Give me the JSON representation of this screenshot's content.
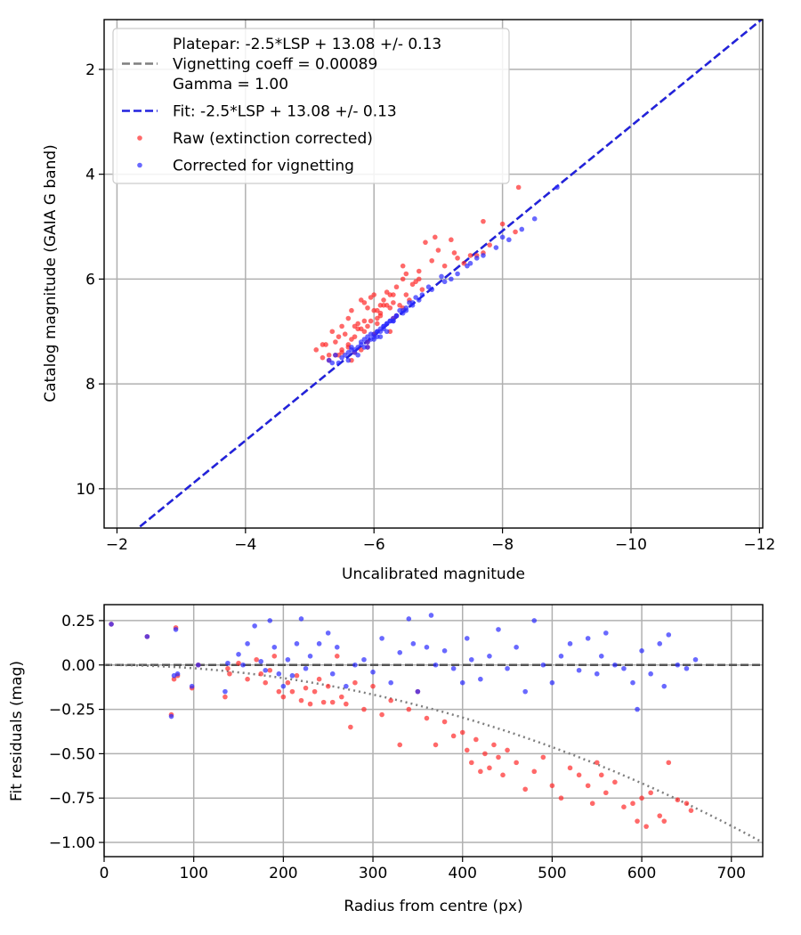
{
  "chart_data": [
    {
      "type": "scatter",
      "title": "",
      "xlabel": "Uncalibrated magnitude",
      "ylabel": "Catalog magnitude (GAIA G band)",
      "xlim": [
        -1.8,
        -12.05
      ],
      "ylim": [
        10.75,
        1.05
      ],
      "x_inverted": true,
      "y_inverted": true,
      "grid": true,
      "legend_position": "upper-left",
      "x_ticks": [
        -2,
        -4,
        -6,
        -8,
        -10,
        -12
      ],
      "x_tick_labels": [
        "−2",
        "−4",
        "−6",
        "−8",
        "−10",
        "−12"
      ],
      "y_ticks": [
        2,
        4,
        6,
        8,
        10
      ],
      "y_tick_labels": [
        "2",
        "4",
        "6",
        "8",
        "10"
      ],
      "legend": [
        {
          "kind": "line",
          "color": "#7f7f7f",
          "style": "dashed",
          "lines": [
            "Platepar: -2.5*LSP + 13.08 +/- 0.13",
            "Vignetting coeff = 0.00089",
            "Gamma = 1.00"
          ]
        },
        {
          "kind": "line",
          "color": "#2222dd",
          "style": "dashed",
          "lines": [
            "Fit: -2.5*LSP + 13.08 +/- 0.13"
          ]
        },
        {
          "kind": "marker",
          "color": "#ff2a2a",
          "lines": [
            "Raw (extinction corrected)"
          ]
        },
        {
          "kind": "marker",
          "color": "#2a2aff",
          "lines": [
            "Corrected for vignetting"
          ]
        }
      ],
      "series": [
        {
          "name": "Platepar: -2.5*LSP + 13.08 +/- 0.13",
          "kind": "line",
          "color": "#7f7f7f",
          "slope": 1.0,
          "intercept": 13.08
        },
        {
          "name": "Fit: -2.5*LSP + 13.08 +/- 0.13",
          "kind": "line",
          "color": "#2222dd",
          "slope": 1.0,
          "intercept": 13.08
        },
        {
          "name": "Raw (extinction corrected)",
          "kind": "scatter",
          "color": "#ff2a2a",
          "x": [
            -5.1,
            -5.2,
            -5.3,
            -5.4,
            -5.5,
            -5.6,
            -5.7,
            -5.8,
            -5.9,
            -6.0,
            -5.2,
            -5.35,
            -5.5,
            -5.65,
            -5.8,
            -5.95,
            -6.1,
            -6.25,
            -5.3,
            -5.45,
            -5.6,
            -5.75,
            -5.9,
            -6.05,
            -6.2,
            -6.35,
            -5.4,
            -5.55,
            -5.7,
            -5.85,
            -6.0,
            -6.15,
            -6.3,
            -6.45,
            -5.5,
            -5.65,
            -5.8,
            -5.95,
            -6.1,
            -6.25,
            -6.4,
            -6.55,
            -5.6,
            -5.75,
            -5.9,
            -6.05,
            -6.2,
            -6.35,
            -6.5,
            -6.65,
            -5.7,
            -5.85,
            -6.0,
            -6.15,
            -6.3,
            -6.45,
            -6.6,
            -6.75,
            -5.9,
            -6.1,
            -6.3,
            -6.5,
            -6.7,
            -6.9,
            -7.1,
            -7.3,
            -7.5,
            -7.7,
            -6.8,
            -7.0,
            -7.2,
            -7.4,
            -7.6,
            -7.8,
            -8.0,
            -8.2,
            -8.25,
            -7.7,
            -6.45,
            -6.7,
            -6.95,
            -7.25,
            -5.25,
            -5.45,
            -5.65,
            -5.85,
            -6.05,
            -6.25
          ],
          "y": [
            7.35,
            7.25,
            7.45,
            7.2,
            7.4,
            7.3,
            7.1,
            7.35,
            7.2,
            7.05,
            7.5,
            7.0,
            6.9,
            7.15,
            6.95,
            6.8,
            6.7,
            7.0,
            7.55,
            7.1,
            6.75,
            6.85,
            7.3,
            6.6,
            6.5,
            6.7,
            7.45,
            7.05,
            6.9,
            6.45,
            6.3,
            6.5,
            6.75,
            6.55,
            7.35,
            6.6,
            6.4,
            6.35,
            6.65,
            6.3,
            6.5,
            6.4,
            7.25,
            6.95,
            6.55,
            6.75,
            6.25,
            6.15,
            6.3,
            6.05,
            7.4,
            6.8,
            6.6,
            6.4,
            6.45,
            6.0,
            6.1,
            6.2,
            6.9,
            6.5,
            6.3,
            5.9,
            5.85,
            5.65,
            5.75,
            5.6,
            5.55,
            5.5,
            5.3,
            5.45,
            5.25,
            5.7,
            5.55,
            5.35,
            4.95,
            5.1,
            4.25,
            4.9,
            5.75,
            6.0,
            5.2,
            5.5,
            7.25,
            7.45,
            7.55,
            7.0,
            6.85,
            6.55
          ]
        },
        {
          "name": "Corrected for vignetting",
          "kind": "scatter",
          "color": "#2a2aff",
          "x": [
            -5.3,
            -5.4,
            -5.5,
            -5.6,
            -5.7,
            -5.8,
            -5.9,
            -6.0,
            -6.1,
            -6.2,
            -5.45,
            -5.55,
            -5.65,
            -5.75,
            -5.85,
            -5.95,
            -6.05,
            -6.15,
            -5.6,
            -5.7,
            -5.8,
            -5.9,
            -6.0,
            -6.1,
            -6.2,
            -6.3,
            -5.75,
            -5.85,
            -5.95,
            -6.05,
            -6.15,
            -6.25,
            -6.35,
            -6.45,
            -5.9,
            -6.0,
            -6.1,
            -6.2,
            -6.3,
            -6.4,
            -6.5,
            -6.6,
            -6.05,
            -6.15,
            -6.25,
            -6.35,
            -6.45,
            -6.55,
            -6.65,
            -6.75,
            -6.3,
            -6.5,
            -6.7,
            -6.9,
            -7.1,
            -7.3,
            -7.5,
            -7.7,
            -7.9,
            -8.1,
            -8.3,
            -8.5,
            -8.85,
            -7.2,
            -7.6,
            -8.0,
            -6.6,
            -6.85,
            -7.05,
            -7.45,
            -5.35,
            -5.65
          ],
          "y": [
            7.55,
            7.45,
            7.5,
            7.4,
            7.35,
            7.25,
            7.2,
            7.15,
            7.1,
            7.0,
            7.6,
            7.45,
            7.3,
            7.3,
            7.15,
            7.05,
            7.0,
            6.9,
            7.55,
            7.4,
            7.2,
            7.1,
            7.05,
            6.95,
            6.85,
            6.8,
            7.45,
            7.3,
            7.15,
            7.0,
            6.9,
            6.8,
            6.7,
            6.65,
            7.3,
            7.1,
            7.0,
            6.85,
            6.75,
            6.6,
            6.55,
            6.45,
            7.1,
            6.95,
            6.8,
            6.7,
            6.6,
            6.45,
            6.35,
            6.3,
            6.8,
            6.6,
            6.4,
            6.2,
            6.05,
            5.9,
            5.7,
            5.55,
            5.4,
            5.25,
            5.05,
            4.85,
            4.25,
            6.0,
            5.6,
            5.2,
            6.5,
            6.15,
            5.95,
            5.75,
            7.6,
            7.35
          ]
        }
      ]
    },
    {
      "type": "scatter",
      "title": "",
      "xlabel": "Radius from centre (px)",
      "ylabel": "Fit residuals (mag)",
      "xlim": [
        0,
        735
      ],
      "ylim": [
        -1.08,
        0.34
      ],
      "grid": true,
      "x_ticks": [
        0,
        100,
        200,
        300,
        400,
        500,
        600,
        700
      ],
      "x_tick_labels": [
        "0",
        "100",
        "200",
        "300",
        "400",
        "500",
        "600",
        "700"
      ],
      "y_ticks": [
        0.25,
        0.0,
        -0.25,
        -0.5,
        -0.75,
        -1.0
      ],
      "y_tick_labels": [
        "0.25",
        "0.00",
        "−0.25",
        "−0.50",
        "−0.75",
        "−1.00"
      ],
      "series": [
        {
          "name": "",
          "kind": "hline",
          "color": "#555555",
          "style": "dashed",
          "y": 0.0
        },
        {
          "name": "",
          "kind": "curve",
          "color": "#7f7f7f",
          "style": "dotted",
          "vignetting_coeff": 0.00089
        },
        {
          "name": "Raw (extinction corrected)",
          "kind": "scatter",
          "color": "#ff2a2a",
          "x": [
            8,
            48,
            80,
            82,
            75,
            78,
            98,
            105,
            135,
            138,
            140,
            150,
            160,
            170,
            175,
            180,
            185,
            190,
            195,
            200,
            205,
            210,
            215,
            220,
            225,
            230,
            235,
            240,
            245,
            250,
            255,
            260,
            265,
            270,
            275,
            280,
            290,
            300,
            310,
            320,
            330,
            340,
            350,
            360,
            370,
            380,
            390,
            400,
            405,
            410,
            415,
            420,
            425,
            430,
            435,
            440,
            445,
            450,
            460,
            470,
            480,
            490,
            500,
            510,
            520,
            530,
            540,
            545,
            550,
            555,
            560,
            570,
            580,
            590,
            595,
            600,
            605,
            610,
            620,
            625,
            630,
            640,
            650,
            655
          ],
          "y": [
            0.23,
            0.16,
            0.21,
            -0.06,
            -0.28,
            -0.08,
            -0.13,
            0.0,
            -0.18,
            -0.02,
            -0.05,
            0.01,
            -0.08,
            0.03,
            -0.05,
            -0.1,
            -0.03,
            0.05,
            -0.15,
            -0.18,
            -0.1,
            -0.15,
            -0.06,
            -0.2,
            -0.13,
            -0.22,
            -0.15,
            -0.08,
            -0.21,
            -0.12,
            -0.21,
            0.05,
            -0.18,
            -0.22,
            -0.35,
            -0.1,
            -0.25,
            -0.12,
            -0.28,
            -0.2,
            -0.45,
            -0.25,
            -0.15,
            -0.3,
            -0.45,
            -0.32,
            -0.4,
            -0.38,
            -0.48,
            -0.55,
            -0.42,
            -0.6,
            -0.5,
            -0.58,
            -0.45,
            -0.52,
            -0.62,
            -0.48,
            -0.55,
            -0.7,
            -0.6,
            -0.52,
            -0.68,
            -0.75,
            -0.58,
            -0.62,
            -0.68,
            -0.78,
            -0.55,
            -0.62,
            -0.72,
            -0.66,
            -0.8,
            -0.78,
            -0.88,
            -0.75,
            -0.91,
            -0.72,
            -0.85,
            -0.88,
            -0.55,
            -0.76,
            -0.78,
            -0.82
          ]
        },
        {
          "name": "Corrected for vignetting",
          "kind": "scatter",
          "color": "#2a2aff",
          "x": [
            8,
            48,
            80,
            82,
            75,
            78,
            98,
            105,
            135,
            138,
            150,
            155,
            160,
            168,
            175,
            180,
            185,
            190,
            195,
            200,
            205,
            210,
            215,
            220,
            225,
            230,
            240,
            250,
            255,
            260,
            270,
            280,
            290,
            300,
            310,
            320,
            330,
            340,
            345,
            350,
            360,
            365,
            370,
            380,
            390,
            400,
            405,
            410,
            420,
            430,
            440,
            450,
            460,
            470,
            480,
            490,
            500,
            510,
            520,
            530,
            540,
            550,
            555,
            560,
            570,
            580,
            590,
            595,
            600,
            610,
            620,
            625,
            630,
            640,
            650,
            660
          ],
          "y": [
            0.23,
            0.16,
            0.2,
            -0.05,
            -0.29,
            -0.06,
            -0.12,
            0.0,
            -0.15,
            0.01,
            0.06,
            0.0,
            0.12,
            0.22,
            0.02,
            -0.03,
            0.25,
            0.1,
            -0.05,
            -0.12,
            0.03,
            -0.06,
            0.12,
            0.26,
            -0.02,
            0.05,
            0.12,
            0.18,
            -0.05,
            0.1,
            -0.12,
            0.0,
            0.03,
            -0.04,
            0.15,
            -0.1,
            0.07,
            0.26,
            0.12,
            -0.15,
            0.1,
            0.28,
            0.0,
            0.08,
            -0.02,
            -0.1,
            0.15,
            0.03,
            -0.08,
            0.05,
            0.2,
            -0.02,
            0.1,
            -0.15,
            0.25,
            0.0,
            -0.1,
            0.05,
            0.12,
            -0.03,
            0.15,
            -0.05,
            0.05,
            0.18,
            0.0,
            -0.02,
            -0.1,
            -0.25,
            0.08,
            -0.05,
            0.12,
            -0.12,
            0.17,
            0.0,
            -0.02,
            0.03
          ]
        }
      ]
    }
  ]
}
